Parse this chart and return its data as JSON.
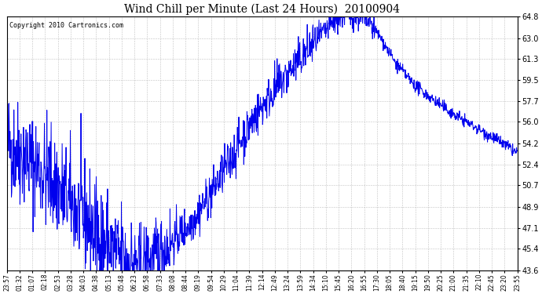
{
  "title": "Wind Chill per Minute (Last 24 Hours)  20100904",
  "copyright_text": "Copyright 2010 Cartronics.com",
  "line_color": "#0000EE",
  "background_color": "#ffffff",
  "plot_bg_color": "#ffffff",
  "grid_color": "#bbbbbb",
  "ylim": [
    43.6,
    64.8
  ],
  "yticks": [
    43.6,
    45.4,
    47.1,
    48.9,
    50.7,
    52.4,
    54.2,
    56.0,
    57.7,
    59.5,
    61.3,
    63.0,
    64.8
  ],
  "xtick_labels": [
    "23:57",
    "01:32",
    "01:07",
    "02:18",
    "02:53",
    "03:28",
    "04:03",
    "04:38",
    "05:13",
    "05:48",
    "06:23",
    "06:58",
    "07:33",
    "08:08",
    "08:44",
    "09:19",
    "09:54",
    "10:29",
    "11:04",
    "11:39",
    "12:14",
    "12:49",
    "13:24",
    "13:59",
    "14:34",
    "15:10",
    "15:45",
    "16:20",
    "16:55",
    "17:30",
    "18:05",
    "18:40",
    "19:15",
    "19:50",
    "20:25",
    "21:00",
    "21:35",
    "22:10",
    "22:45",
    "23:20",
    "23:55"
  ],
  "num_points": 1440,
  "figwidth": 6.9,
  "figheight": 3.75,
  "dpi": 100
}
